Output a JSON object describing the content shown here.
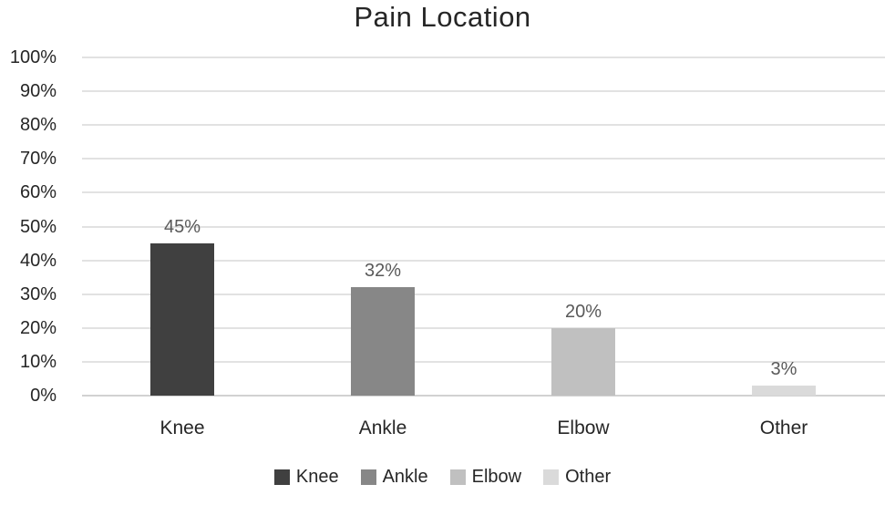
{
  "chart_data": {
    "type": "bar",
    "title": "Pain Location",
    "categories": [
      "Knee",
      "Ankle",
      "Elbow",
      "Other"
    ],
    "values": [
      45,
      32,
      20,
      3
    ],
    "value_labels": [
      "45%",
      "32%",
      "20%",
      "3%"
    ],
    "y_tick_labels": [
      "0%",
      "10%",
      "20%",
      "30%",
      "40%",
      "50%",
      "60%",
      "70%",
      "80%",
      "90%",
      "100%"
    ],
    "ylim": [
      0,
      100
    ],
    "y_tick_step": 10,
    "xlabel": "",
    "ylabel": "",
    "grid": true,
    "legend_position": "bottom",
    "legend_entries": [
      "Knee",
      "Ankle",
      "Elbow",
      "Other"
    ],
    "bar_colors": [
      "#404040",
      "#878787",
      "#c0c0c0",
      "#dadada"
    ],
    "colors": {
      "title_text": "#262626",
      "axis_tick_text": "#262626",
      "category_text": "#262626",
      "value_label_text": "#595959",
      "legend_text": "#262626",
      "gridline": "#e2e2e2",
      "axis_line": "#d2d2d2",
      "background": "#ffffff"
    }
  }
}
